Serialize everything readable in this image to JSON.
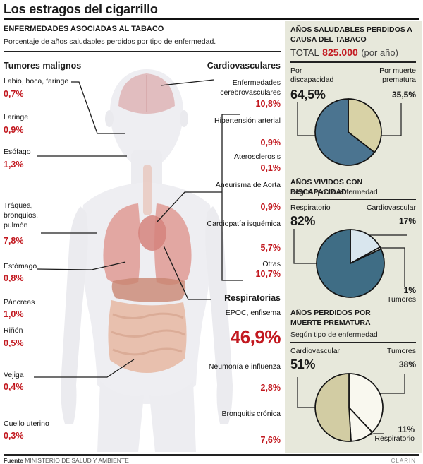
{
  "title": "Los estragos del cigarrillo",
  "main": {
    "heading": "ENFERMEDADES ASOCIADAS AL TABACO",
    "subheading": "Porcentaje de años saludables perdidos por tipo de enfermedad.",
    "group_tumores": "Tumores malignos",
    "group_cardio": "Cardiovasculares",
    "group_respiratorias": "Respiratorias",
    "tumores": [
      {
        "label": "Labio, boca, faringe",
        "value": "0,7%"
      },
      {
        "label": "Laringe",
        "value": "0,9%"
      },
      {
        "label": "Esófago",
        "value": "1,3%"
      },
      {
        "label": "Tráquea, bronquios, pulmón",
        "value": "7,8%"
      },
      {
        "label": "Estómago",
        "value": "0,8%"
      },
      {
        "label": "Páncreas",
        "value": "1,0%"
      },
      {
        "label": "Riñón",
        "value": "0,5%"
      },
      {
        "label": "Vejiga",
        "value": "0,4%"
      },
      {
        "label": "Cuello uterino",
        "value": "0,3%"
      }
    ],
    "cardio": [
      {
        "label": "Enfermedades cerebrovasculares",
        "value": "10,8%"
      },
      {
        "label": "Hipertensión arterial",
        "value": "0,9%"
      },
      {
        "label": "Aterosclerosis",
        "value": "0,1%"
      },
      {
        "label": "Aneurisma de Aorta",
        "value": "0,9%"
      },
      {
        "label": "Cardiopatía isquémica",
        "value": "5,7%"
      },
      {
        "label": "Otras",
        "value": "10,7%"
      }
    ],
    "respiratorias": [
      {
        "label": "EPOC, enfisema",
        "value": "46,9%"
      },
      {
        "label": "Neumonía e influenza",
        "value": "2,8%"
      },
      {
        "label": "Bronquitis crónica",
        "value": "7,6%"
      }
    ]
  },
  "chart_data": [
    {
      "type": "pie",
      "title": "AÑOS SALUDABLES PERDIDOS A CAUSA DEL TABACO",
      "total_label": "TOTAL",
      "total_value": "825.000",
      "total_note": "(por año)",
      "legend_position": "above",
      "slices": [
        {
          "label": "Por muerte prematura",
          "value": 35.5,
          "display": "35,5%",
          "color": "#d8d2a6"
        },
        {
          "label": "Por discapacidad",
          "value": 64.5,
          "display": "64,5%",
          "color": "#4b7490"
        }
      ]
    },
    {
      "type": "pie",
      "title": "AÑOS VIVIDOS CON DISCAPACIDAD",
      "subtitle": "Según tipo de enfermedad",
      "legend_position": "around",
      "slices": [
        {
          "label": "Cardiovascular",
          "value": 17,
          "display": "17%",
          "color": "#d9e6ee"
        },
        {
          "label": "Tumores",
          "value": 1,
          "display": "1%",
          "color": "#f2f0e2"
        },
        {
          "label": "Respiratorio",
          "value": 82,
          "display": "82%",
          "color": "#3f6d85"
        }
      ]
    },
    {
      "type": "pie",
      "title": "AÑOS PERDIDOS POR MUERTE PREMATURA",
      "subtitle": "Según tipo de enfermedad",
      "legend_position": "around",
      "slices": [
        {
          "label": "Tumores",
          "value": 38,
          "display": "38%",
          "color": "#f9f8ef"
        },
        {
          "label": "Respiratorio",
          "value": 11,
          "display": "11%",
          "color": "#f9f8ef"
        },
        {
          "label": "Cardiovascular",
          "value": 51,
          "display": "51%",
          "color": "#d2cca3"
        }
      ]
    }
  ],
  "footer": {
    "source_label": "Fuente",
    "source": "MINISTERIO DE SALUD Y AMBIENTE",
    "credit": "CLARIN"
  }
}
